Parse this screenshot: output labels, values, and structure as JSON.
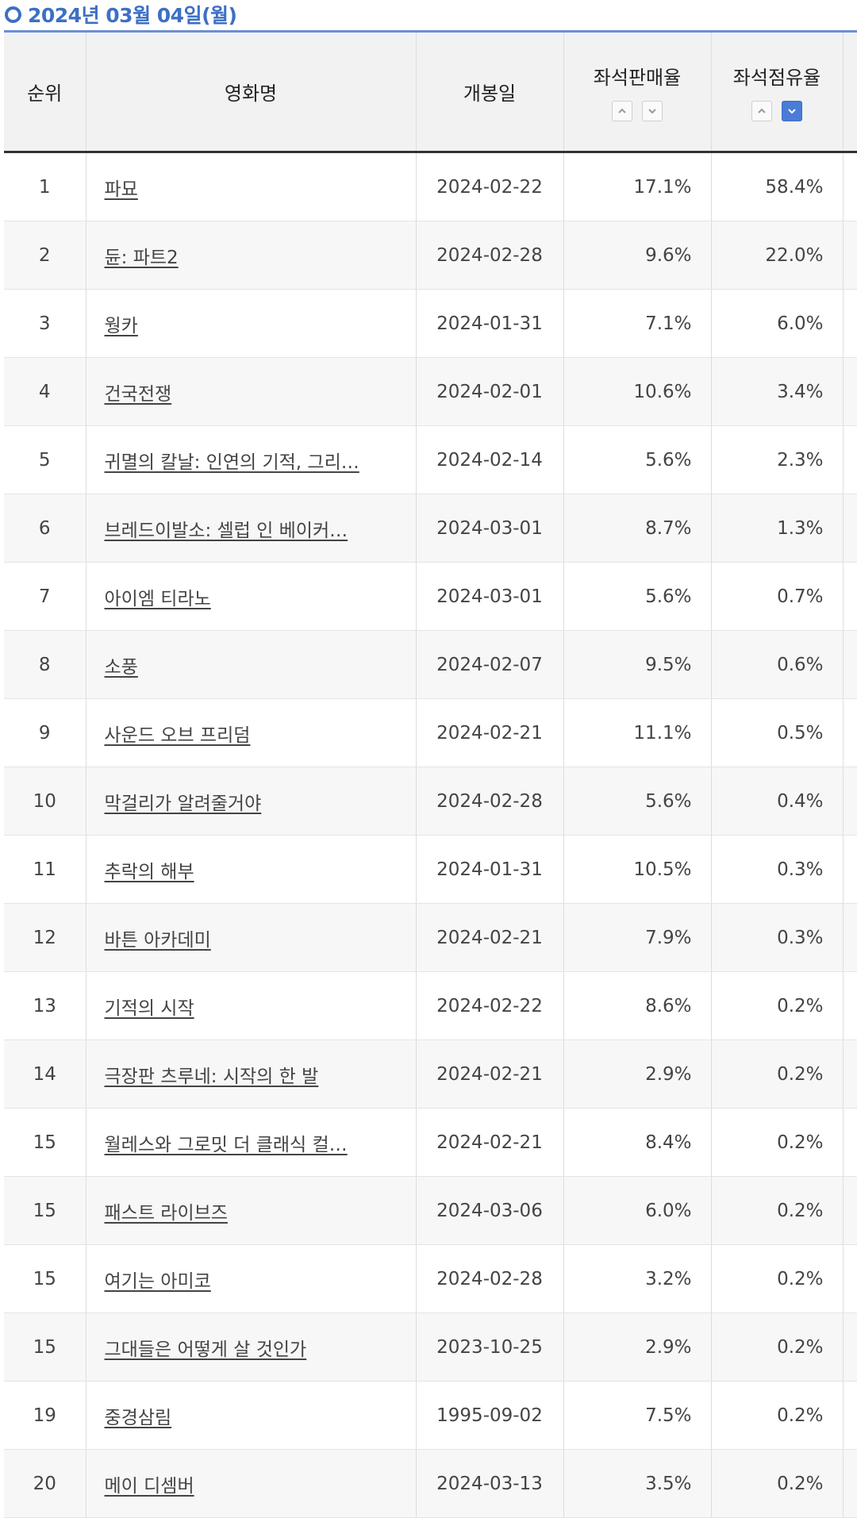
{
  "header": {
    "date": "2024년 03월 04일(월)"
  },
  "table": {
    "columns": {
      "rank": "순위",
      "title": "영화명",
      "release_date": "개봉일",
      "seat_sales_rate": "좌석판매율",
      "seat_share_rate": "좌석점유율"
    },
    "sort": {
      "seat_sales_rate": "none",
      "seat_share_rate": "descending"
    },
    "rows": [
      {
        "rank": "1",
        "title": "파묘",
        "release_date": "2024-02-22",
        "seat_sales_rate": "17.1%",
        "seat_share_rate": "58.4%"
      },
      {
        "rank": "2",
        "title": "듄: 파트2",
        "release_date": "2024-02-28",
        "seat_sales_rate": "9.6%",
        "seat_share_rate": "22.0%"
      },
      {
        "rank": "3",
        "title": "웡카",
        "release_date": "2024-01-31",
        "seat_sales_rate": "7.1%",
        "seat_share_rate": "6.0%"
      },
      {
        "rank": "4",
        "title": "건국전쟁",
        "release_date": "2024-02-01",
        "seat_sales_rate": "10.6%",
        "seat_share_rate": "3.4%"
      },
      {
        "rank": "5",
        "title": "귀멸의 칼날: 인연의 기적, 그리…",
        "release_date": "2024-02-14",
        "seat_sales_rate": "5.6%",
        "seat_share_rate": "2.3%"
      },
      {
        "rank": "6",
        "title": "브레드이발소: 셀럽 인 베이커…",
        "release_date": "2024-03-01",
        "seat_sales_rate": "8.7%",
        "seat_share_rate": "1.3%"
      },
      {
        "rank": "7",
        "title": "아이엠 티라노",
        "release_date": "2024-03-01",
        "seat_sales_rate": "5.6%",
        "seat_share_rate": "0.7%"
      },
      {
        "rank": "8",
        "title": "소풍",
        "release_date": "2024-02-07",
        "seat_sales_rate": "9.5%",
        "seat_share_rate": "0.6%"
      },
      {
        "rank": "9",
        "title": "사운드 오브 프리덤",
        "release_date": "2024-02-21",
        "seat_sales_rate": "11.1%",
        "seat_share_rate": "0.5%"
      },
      {
        "rank": "10",
        "title": "막걸리가 알려줄거야",
        "release_date": "2024-02-28",
        "seat_sales_rate": "5.6%",
        "seat_share_rate": "0.4%"
      },
      {
        "rank": "11",
        "title": "추락의 해부",
        "release_date": "2024-01-31",
        "seat_sales_rate": "10.5%",
        "seat_share_rate": "0.3%"
      },
      {
        "rank": "12",
        "title": "바튼 아카데미",
        "release_date": "2024-02-21",
        "seat_sales_rate": "7.9%",
        "seat_share_rate": "0.3%"
      },
      {
        "rank": "13",
        "title": "기적의 시작",
        "release_date": "2024-02-22",
        "seat_sales_rate": "8.6%",
        "seat_share_rate": "0.2%"
      },
      {
        "rank": "14",
        "title": "극장판 츠루네: 시작의 한 발",
        "release_date": "2024-02-21",
        "seat_sales_rate": "2.9%",
        "seat_share_rate": "0.2%"
      },
      {
        "rank": "15",
        "title": "월레스와 그로밋 더 클래식 컬…",
        "release_date": "2024-02-21",
        "seat_sales_rate": "8.4%",
        "seat_share_rate": "0.2%"
      },
      {
        "rank": "15",
        "title": "패스트 라이브즈",
        "release_date": "2024-03-06",
        "seat_sales_rate": "6.0%",
        "seat_share_rate": "0.2%"
      },
      {
        "rank": "15",
        "title": "여기는 아미코",
        "release_date": "2024-02-28",
        "seat_sales_rate": "3.2%",
        "seat_share_rate": "0.2%"
      },
      {
        "rank": "15",
        "title": "그대들은 어떻게 살 것인가",
        "release_date": "2023-10-25",
        "seat_sales_rate": "2.9%",
        "seat_share_rate": "0.2%"
      },
      {
        "rank": "19",
        "title": "중경삼림",
        "release_date": "1995-09-02",
        "seat_sales_rate": "7.5%",
        "seat_share_rate": "0.2%"
      },
      {
        "rank": "20",
        "title": "메이 디셈버",
        "release_date": "2024-03-13",
        "seat_sales_rate": "3.5%",
        "seat_share_rate": "0.2%"
      }
    ]
  },
  "icons": {
    "sort_up": "chevron-up-icon",
    "sort_down": "chevron-down-icon",
    "title_bullet": "circle-icon"
  },
  "colors": {
    "accent": "#3d6fc4",
    "active_sort": "#4a7bd6"
  }
}
